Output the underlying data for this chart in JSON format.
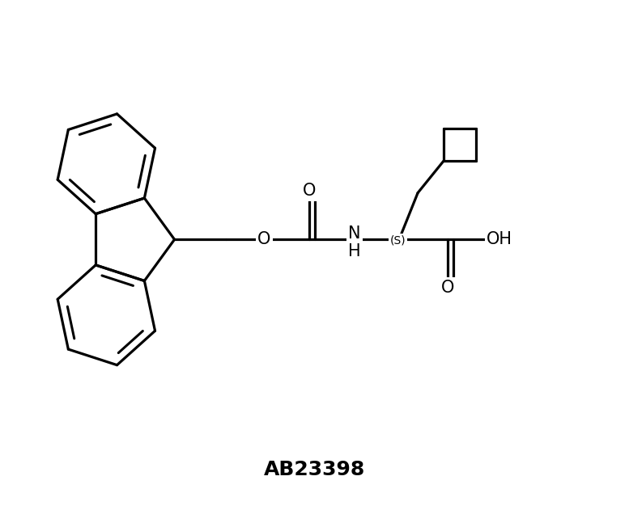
{
  "title": "AB23398",
  "title_fontsize": 18,
  "title_fontweight": "bold",
  "bg_color": "#ffffff",
  "line_color": "#000000",
  "lw": 2.3,
  "figsize": [
    7.77,
    6.31
  ],
  "dpi": 100,
  "xlim": [
    0,
    10
  ],
  "ylim": [
    0,
    8
  ],
  "label_NH": "N\nH",
  "label_S": "(S)",
  "label_O_up": "O",
  "label_O_dn": "O",
  "label_OH": "OH",
  "label_code": "AB23398"
}
